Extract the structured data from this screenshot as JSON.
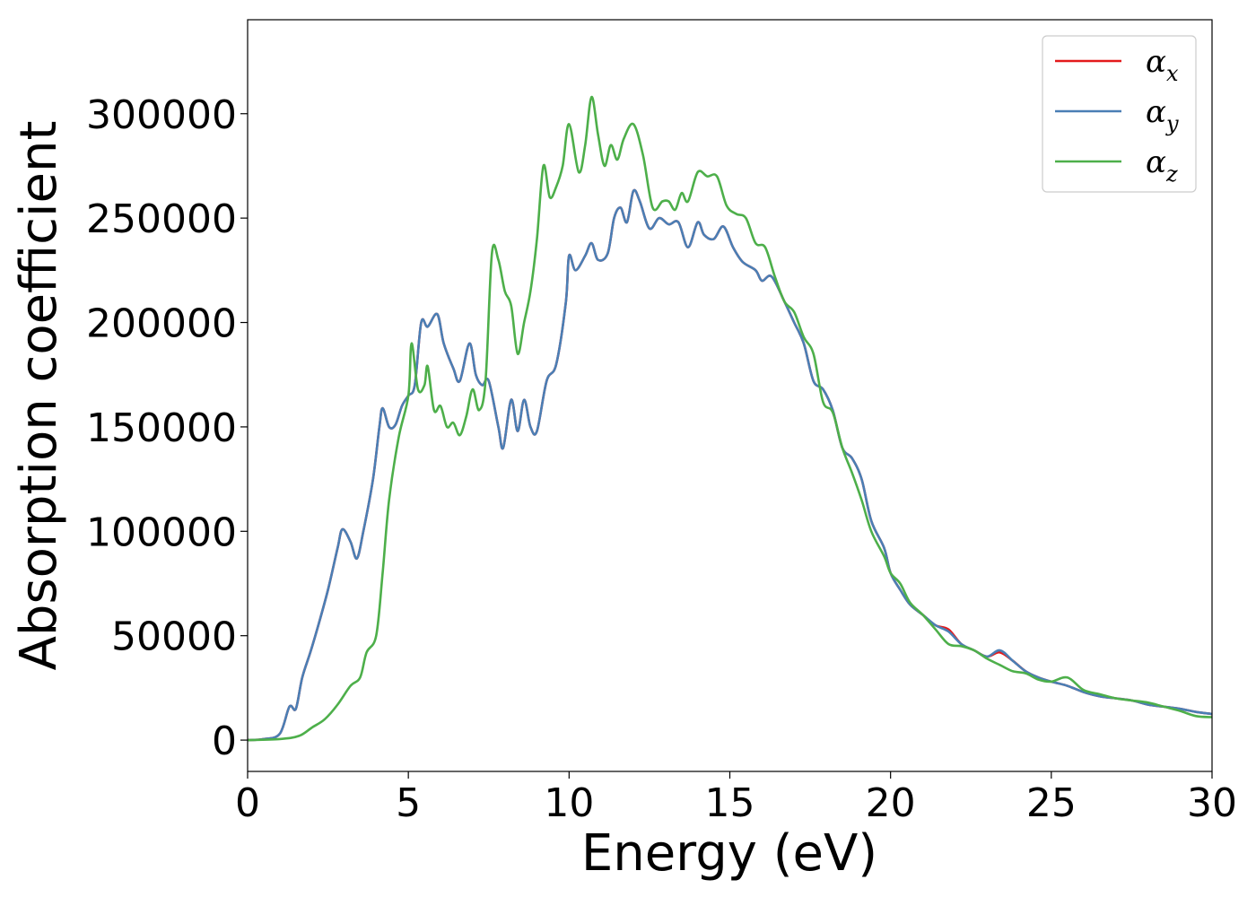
{
  "chart_data": {
    "type": "line",
    "title": "",
    "xlabel": "Energy (eV)",
    "ylabel": "Absorption coefficient",
    "xlim": [
      0,
      30
    ],
    "ylim": [
      -15000,
      345000
    ],
    "xticks": [
      0,
      5,
      10,
      15,
      20,
      25,
      30
    ],
    "yticks": [
      0,
      50000,
      100000,
      150000,
      200000,
      250000,
      300000
    ],
    "grid": false,
    "legend_position": "top-right",
    "series": [
      {
        "name": "α_x",
        "label_main": "α",
        "label_sub": "x",
        "color": "#e41a1c",
        "points": [
          [
            0,
            0
          ],
          [
            0.5,
            500
          ],
          [
            1,
            3000
          ],
          [
            1.3,
            16000
          ],
          [
            1.5,
            15000
          ],
          [
            1.7,
            30000
          ],
          [
            1.95,
            42000
          ],
          [
            2.2,
            55000
          ],
          [
            2.5,
            72000
          ],
          [
            2.8,
            92000
          ],
          [
            2.95,
            101000
          ],
          [
            3.2,
            95000
          ],
          [
            3.4,
            87000
          ],
          [
            3.6,
            100000
          ],
          [
            3.9,
            125000
          ],
          [
            4.1,
            150000
          ],
          [
            4.2,
            159000
          ],
          [
            4.4,
            150000
          ],
          [
            4.6,
            151000
          ],
          [
            4.8,
            160000
          ],
          [
            5.0,
            165000
          ],
          [
            5.2,
            170000
          ],
          [
            5.4,
            200000
          ],
          [
            5.6,
            198000
          ],
          [
            5.9,
            204000
          ],
          [
            6.1,
            190000
          ],
          [
            6.4,
            178000
          ],
          [
            6.6,
            172000
          ],
          [
            6.9,
            190000
          ],
          [
            7.1,
            175000
          ],
          [
            7.3,
            170000
          ],
          [
            7.5,
            172000
          ],
          [
            7.8,
            150000
          ],
          [
            7.95,
            140000
          ],
          [
            8.2,
            163000
          ],
          [
            8.4,
            148000
          ],
          [
            8.6,
            163000
          ],
          [
            8.8,
            150000
          ],
          [
            9.0,
            148000
          ],
          [
            9.3,
            172000
          ],
          [
            9.6,
            180000
          ],
          [
            9.9,
            210000
          ],
          [
            10.0,
            232000
          ],
          [
            10.2,
            225000
          ],
          [
            10.5,
            232000
          ],
          [
            10.7,
            238000
          ],
          [
            10.9,
            230000
          ],
          [
            11.2,
            233000
          ],
          [
            11.4,
            250000
          ],
          [
            11.6,
            255000
          ],
          [
            11.8,
            248000
          ],
          [
            12.0,
            263000
          ],
          [
            12.2,
            258000
          ],
          [
            12.5,
            245000
          ],
          [
            12.8,
            250000
          ],
          [
            13.1,
            247000
          ],
          [
            13.4,
            248000
          ],
          [
            13.7,
            236000
          ],
          [
            14.0,
            248000
          ],
          [
            14.2,
            242000
          ],
          [
            14.5,
            240000
          ],
          [
            14.8,
            246000
          ],
          [
            15.1,
            236000
          ],
          [
            15.4,
            229000
          ],
          [
            15.8,
            225000
          ],
          [
            16.0,
            220000
          ],
          [
            16.3,
            222000
          ],
          [
            16.7,
            210000
          ],
          [
            17.0,
            200000
          ],
          [
            17.3,
            190000
          ],
          [
            17.6,
            172000
          ],
          [
            17.9,
            168000
          ],
          [
            18.2,
            158000
          ],
          [
            18.5,
            140000
          ],
          [
            18.8,
            135000
          ],
          [
            19.1,
            125000
          ],
          [
            19.4,
            105000
          ],
          [
            19.8,
            92000
          ],
          [
            20.0,
            80000
          ],
          [
            20.3,
            72000
          ],
          [
            20.6,
            65000
          ],
          [
            21.0,
            60000
          ],
          [
            21.4,
            55000
          ],
          [
            21.8,
            53000
          ],
          [
            22.2,
            46000
          ],
          [
            22.6,
            43000
          ],
          [
            23.0,
            40000
          ],
          [
            23.4,
            42000
          ],
          [
            23.8,
            38000
          ],
          [
            24.2,
            33000
          ],
          [
            24.6,
            30000
          ],
          [
            25.0,
            28000
          ],
          [
            25.5,
            26000
          ],
          [
            26.0,
            23000
          ],
          [
            26.5,
            21000
          ],
          [
            27.0,
            20000
          ],
          [
            27.5,
            19000
          ],
          [
            28.0,
            17000
          ],
          [
            28.5,
            16000
          ],
          [
            29.0,
            15000
          ],
          [
            29.5,
            13500
          ],
          [
            30.0,
            12500
          ]
        ]
      },
      {
        "name": "α_y",
        "label_main": "α",
        "label_sub": "y",
        "color": "#4a7fb5",
        "points": [
          [
            0,
            0
          ],
          [
            0.5,
            500
          ],
          [
            1,
            3000
          ],
          [
            1.3,
            16000
          ],
          [
            1.5,
            15000
          ],
          [
            1.7,
            30000
          ],
          [
            1.95,
            42000
          ],
          [
            2.2,
            55000
          ],
          [
            2.5,
            72000
          ],
          [
            2.8,
            92000
          ],
          [
            2.95,
            101000
          ],
          [
            3.2,
            95000
          ],
          [
            3.4,
            87000
          ],
          [
            3.6,
            100000
          ],
          [
            3.9,
            125000
          ],
          [
            4.1,
            150000
          ],
          [
            4.2,
            159000
          ],
          [
            4.4,
            150000
          ],
          [
            4.6,
            151000
          ],
          [
            4.8,
            160000
          ],
          [
            5.0,
            165000
          ],
          [
            5.2,
            170000
          ],
          [
            5.4,
            200000
          ],
          [
            5.6,
            198000
          ],
          [
            5.9,
            204000
          ],
          [
            6.1,
            190000
          ],
          [
            6.4,
            178000
          ],
          [
            6.6,
            172000
          ],
          [
            6.9,
            190000
          ],
          [
            7.1,
            175000
          ],
          [
            7.3,
            170000
          ],
          [
            7.5,
            172000
          ],
          [
            7.8,
            150000
          ],
          [
            7.95,
            140000
          ],
          [
            8.2,
            163000
          ],
          [
            8.4,
            148000
          ],
          [
            8.6,
            163000
          ],
          [
            8.8,
            150000
          ],
          [
            9.0,
            148000
          ],
          [
            9.3,
            172000
          ],
          [
            9.6,
            180000
          ],
          [
            9.9,
            210000
          ],
          [
            10.0,
            232000
          ],
          [
            10.2,
            225000
          ],
          [
            10.5,
            232000
          ],
          [
            10.7,
            238000
          ],
          [
            10.9,
            230000
          ],
          [
            11.2,
            233000
          ],
          [
            11.4,
            250000
          ],
          [
            11.6,
            255000
          ],
          [
            11.8,
            248000
          ],
          [
            12.0,
            263000
          ],
          [
            12.2,
            258000
          ],
          [
            12.5,
            245000
          ],
          [
            12.8,
            250000
          ],
          [
            13.1,
            247000
          ],
          [
            13.4,
            248000
          ],
          [
            13.7,
            236000
          ],
          [
            14.0,
            248000
          ],
          [
            14.2,
            242000
          ],
          [
            14.5,
            240000
          ],
          [
            14.8,
            246000
          ],
          [
            15.1,
            236000
          ],
          [
            15.4,
            229000
          ],
          [
            15.8,
            225000
          ],
          [
            16.0,
            220000
          ],
          [
            16.3,
            222000
          ],
          [
            16.7,
            210000
          ],
          [
            17.0,
            200000
          ],
          [
            17.3,
            190000
          ],
          [
            17.6,
            172000
          ],
          [
            17.9,
            168000
          ],
          [
            18.2,
            158000
          ],
          [
            18.5,
            140000
          ],
          [
            18.8,
            135000
          ],
          [
            19.1,
            125000
          ],
          [
            19.4,
            105000
          ],
          [
            19.8,
            92000
          ],
          [
            20.0,
            80000
          ],
          [
            20.3,
            72000
          ],
          [
            20.6,
            65000
          ],
          [
            21.0,
            60000
          ],
          [
            21.4,
            55000
          ],
          [
            21.8,
            52000
          ],
          [
            22.2,
            46000
          ],
          [
            22.6,
            43000
          ],
          [
            23.0,
            40000
          ],
          [
            23.4,
            43000
          ],
          [
            23.8,
            38000
          ],
          [
            24.2,
            33000
          ],
          [
            24.6,
            30000
          ],
          [
            25.0,
            28000
          ],
          [
            25.5,
            26000
          ],
          [
            26.0,
            23000
          ],
          [
            26.5,
            21000
          ],
          [
            27.0,
            20000
          ],
          [
            27.5,
            19000
          ],
          [
            28.0,
            17000
          ],
          [
            28.5,
            16000
          ],
          [
            29.0,
            15000
          ],
          [
            29.5,
            13500
          ],
          [
            30.0,
            12500
          ]
        ]
      },
      {
        "name": "α_z",
        "label_main": "α",
        "label_sub": "z",
        "color": "#4daf4a",
        "points": [
          [
            0,
            0
          ],
          [
            1,
            500
          ],
          [
            1.6,
            2000
          ],
          [
            2.0,
            6000
          ],
          [
            2.4,
            10000
          ],
          [
            2.8,
            17000
          ],
          [
            3.2,
            26000
          ],
          [
            3.5,
            30000
          ],
          [
            3.7,
            42000
          ],
          [
            4.0,
            50000
          ],
          [
            4.2,
            80000
          ],
          [
            4.4,
            115000
          ],
          [
            4.7,
            145000
          ],
          [
            5.0,
            165000
          ],
          [
            5.1,
            190000
          ],
          [
            5.3,
            168000
          ],
          [
            5.5,
            170000
          ],
          [
            5.6,
            179000
          ],
          [
            5.8,
            158000
          ],
          [
            6.0,
            160000
          ],
          [
            6.2,
            150000
          ],
          [
            6.4,
            152000
          ],
          [
            6.6,
            146000
          ],
          [
            6.8,
            155000
          ],
          [
            7.0,
            168000
          ],
          [
            7.2,
            158000
          ],
          [
            7.4,
            172000
          ],
          [
            7.6,
            233000
          ],
          [
            7.8,
            230000
          ],
          [
            8.0,
            215000
          ],
          [
            8.2,
            208000
          ],
          [
            8.4,
            185000
          ],
          [
            8.6,
            200000
          ],
          [
            8.8,
            215000
          ],
          [
            9.0,
            240000
          ],
          [
            9.2,
            275000
          ],
          [
            9.4,
            260000
          ],
          [
            9.6,
            265000
          ],
          [
            9.8,
            275000
          ],
          [
            10.0,
            295000
          ],
          [
            10.3,
            272000
          ],
          [
            10.5,
            285000
          ],
          [
            10.7,
            308000
          ],
          [
            10.9,
            290000
          ],
          [
            11.1,
            275000
          ],
          [
            11.3,
            285000
          ],
          [
            11.5,
            278000
          ],
          [
            11.7,
            288000
          ],
          [
            12.0,
            295000
          ],
          [
            12.3,
            280000
          ],
          [
            12.6,
            255000
          ],
          [
            12.9,
            258000
          ],
          [
            13.1,
            258000
          ],
          [
            13.3,
            254000
          ],
          [
            13.5,
            262000
          ],
          [
            13.7,
            258000
          ],
          [
            14.0,
            272000
          ],
          [
            14.3,
            270000
          ],
          [
            14.6,
            270000
          ],
          [
            14.9,
            256000
          ],
          [
            15.2,
            252000
          ],
          [
            15.5,
            250000
          ],
          [
            15.8,
            238000
          ],
          [
            16.1,
            236000
          ],
          [
            16.4,
            222000
          ],
          [
            16.7,
            210000
          ],
          [
            17.0,
            205000
          ],
          [
            17.3,
            193000
          ],
          [
            17.6,
            185000
          ],
          [
            17.9,
            162000
          ],
          [
            18.2,
            157000
          ],
          [
            18.5,
            140000
          ],
          [
            18.8,
            128000
          ],
          [
            19.1,
            115000
          ],
          [
            19.4,
            100000
          ],
          [
            19.8,
            88000
          ],
          [
            20.0,
            80000
          ],
          [
            20.3,
            75000
          ],
          [
            20.6,
            66000
          ],
          [
            21.0,
            60000
          ],
          [
            21.4,
            53000
          ],
          [
            21.8,
            46000
          ],
          [
            22.2,
            45000
          ],
          [
            22.6,
            43000
          ],
          [
            23.0,
            39000
          ],
          [
            23.4,
            36000
          ],
          [
            23.8,
            33000
          ],
          [
            24.2,
            32000
          ],
          [
            24.6,
            29000
          ],
          [
            25.0,
            28000
          ],
          [
            25.5,
            30000
          ],
          [
            26.0,
            24000
          ],
          [
            26.5,
            22000
          ],
          [
            27.0,
            20000
          ],
          [
            27.5,
            19000
          ],
          [
            28.0,
            18000
          ],
          [
            28.5,
            16000
          ],
          [
            29.0,
            14000
          ],
          [
            29.5,
            11500
          ],
          [
            30.0,
            11000
          ]
        ]
      }
    ]
  }
}
